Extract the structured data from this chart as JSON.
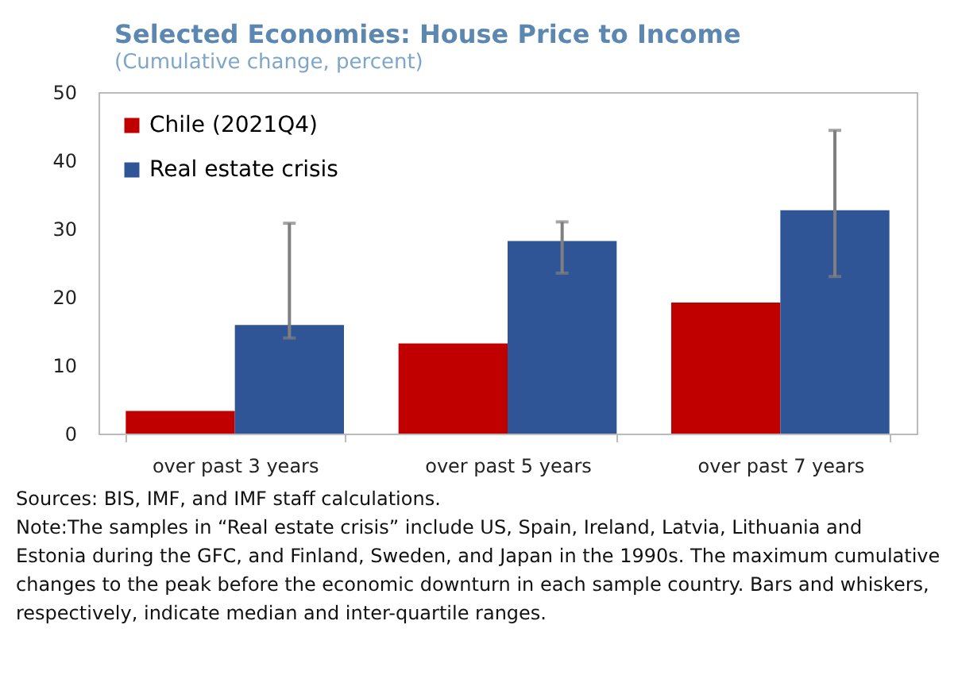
{
  "chart_data": {
    "type": "bar",
    "title": "Selected Economies: House Price to Income",
    "subtitle": "(Cumulative change, percent)",
    "categories": [
      "over past 3 years",
      "over past 5 years",
      "over past 7 years"
    ],
    "series": [
      {
        "name": "Chile (2021Q4)",
        "color": "#c00000",
        "values": [
          3.3,
          13.2,
          19.2
        ]
      },
      {
        "name": "Real estate crisis",
        "color": "#2f5597",
        "values": [
          15.9,
          28.2,
          32.7
        ],
        "errors": [
          [
            14,
            30.8
          ],
          [
            23.5,
            31
          ],
          [
            23,
            44.4
          ]
        ]
      }
    ],
    "ylim": [
      0,
      50
    ],
    "yticks": [
      0,
      10,
      20,
      30,
      40,
      50
    ],
    "grid": false,
    "legend": "top left",
    "annotations": [
      "Sources: BIS, IMF, and IMF staff calculations.",
      "Note:The samples in “Real estate crisis” include US, Spain, Ireland, Latvia, Lithuania and Estonia during the GFC, and Finland, Sweden, and Japan in the 1990s. The maximum cumulative changes to the peak before the economic downturn in each sample country. Bars and whiskers, respectively, indicate median and inter-quartile ranges."
    ]
  }
}
